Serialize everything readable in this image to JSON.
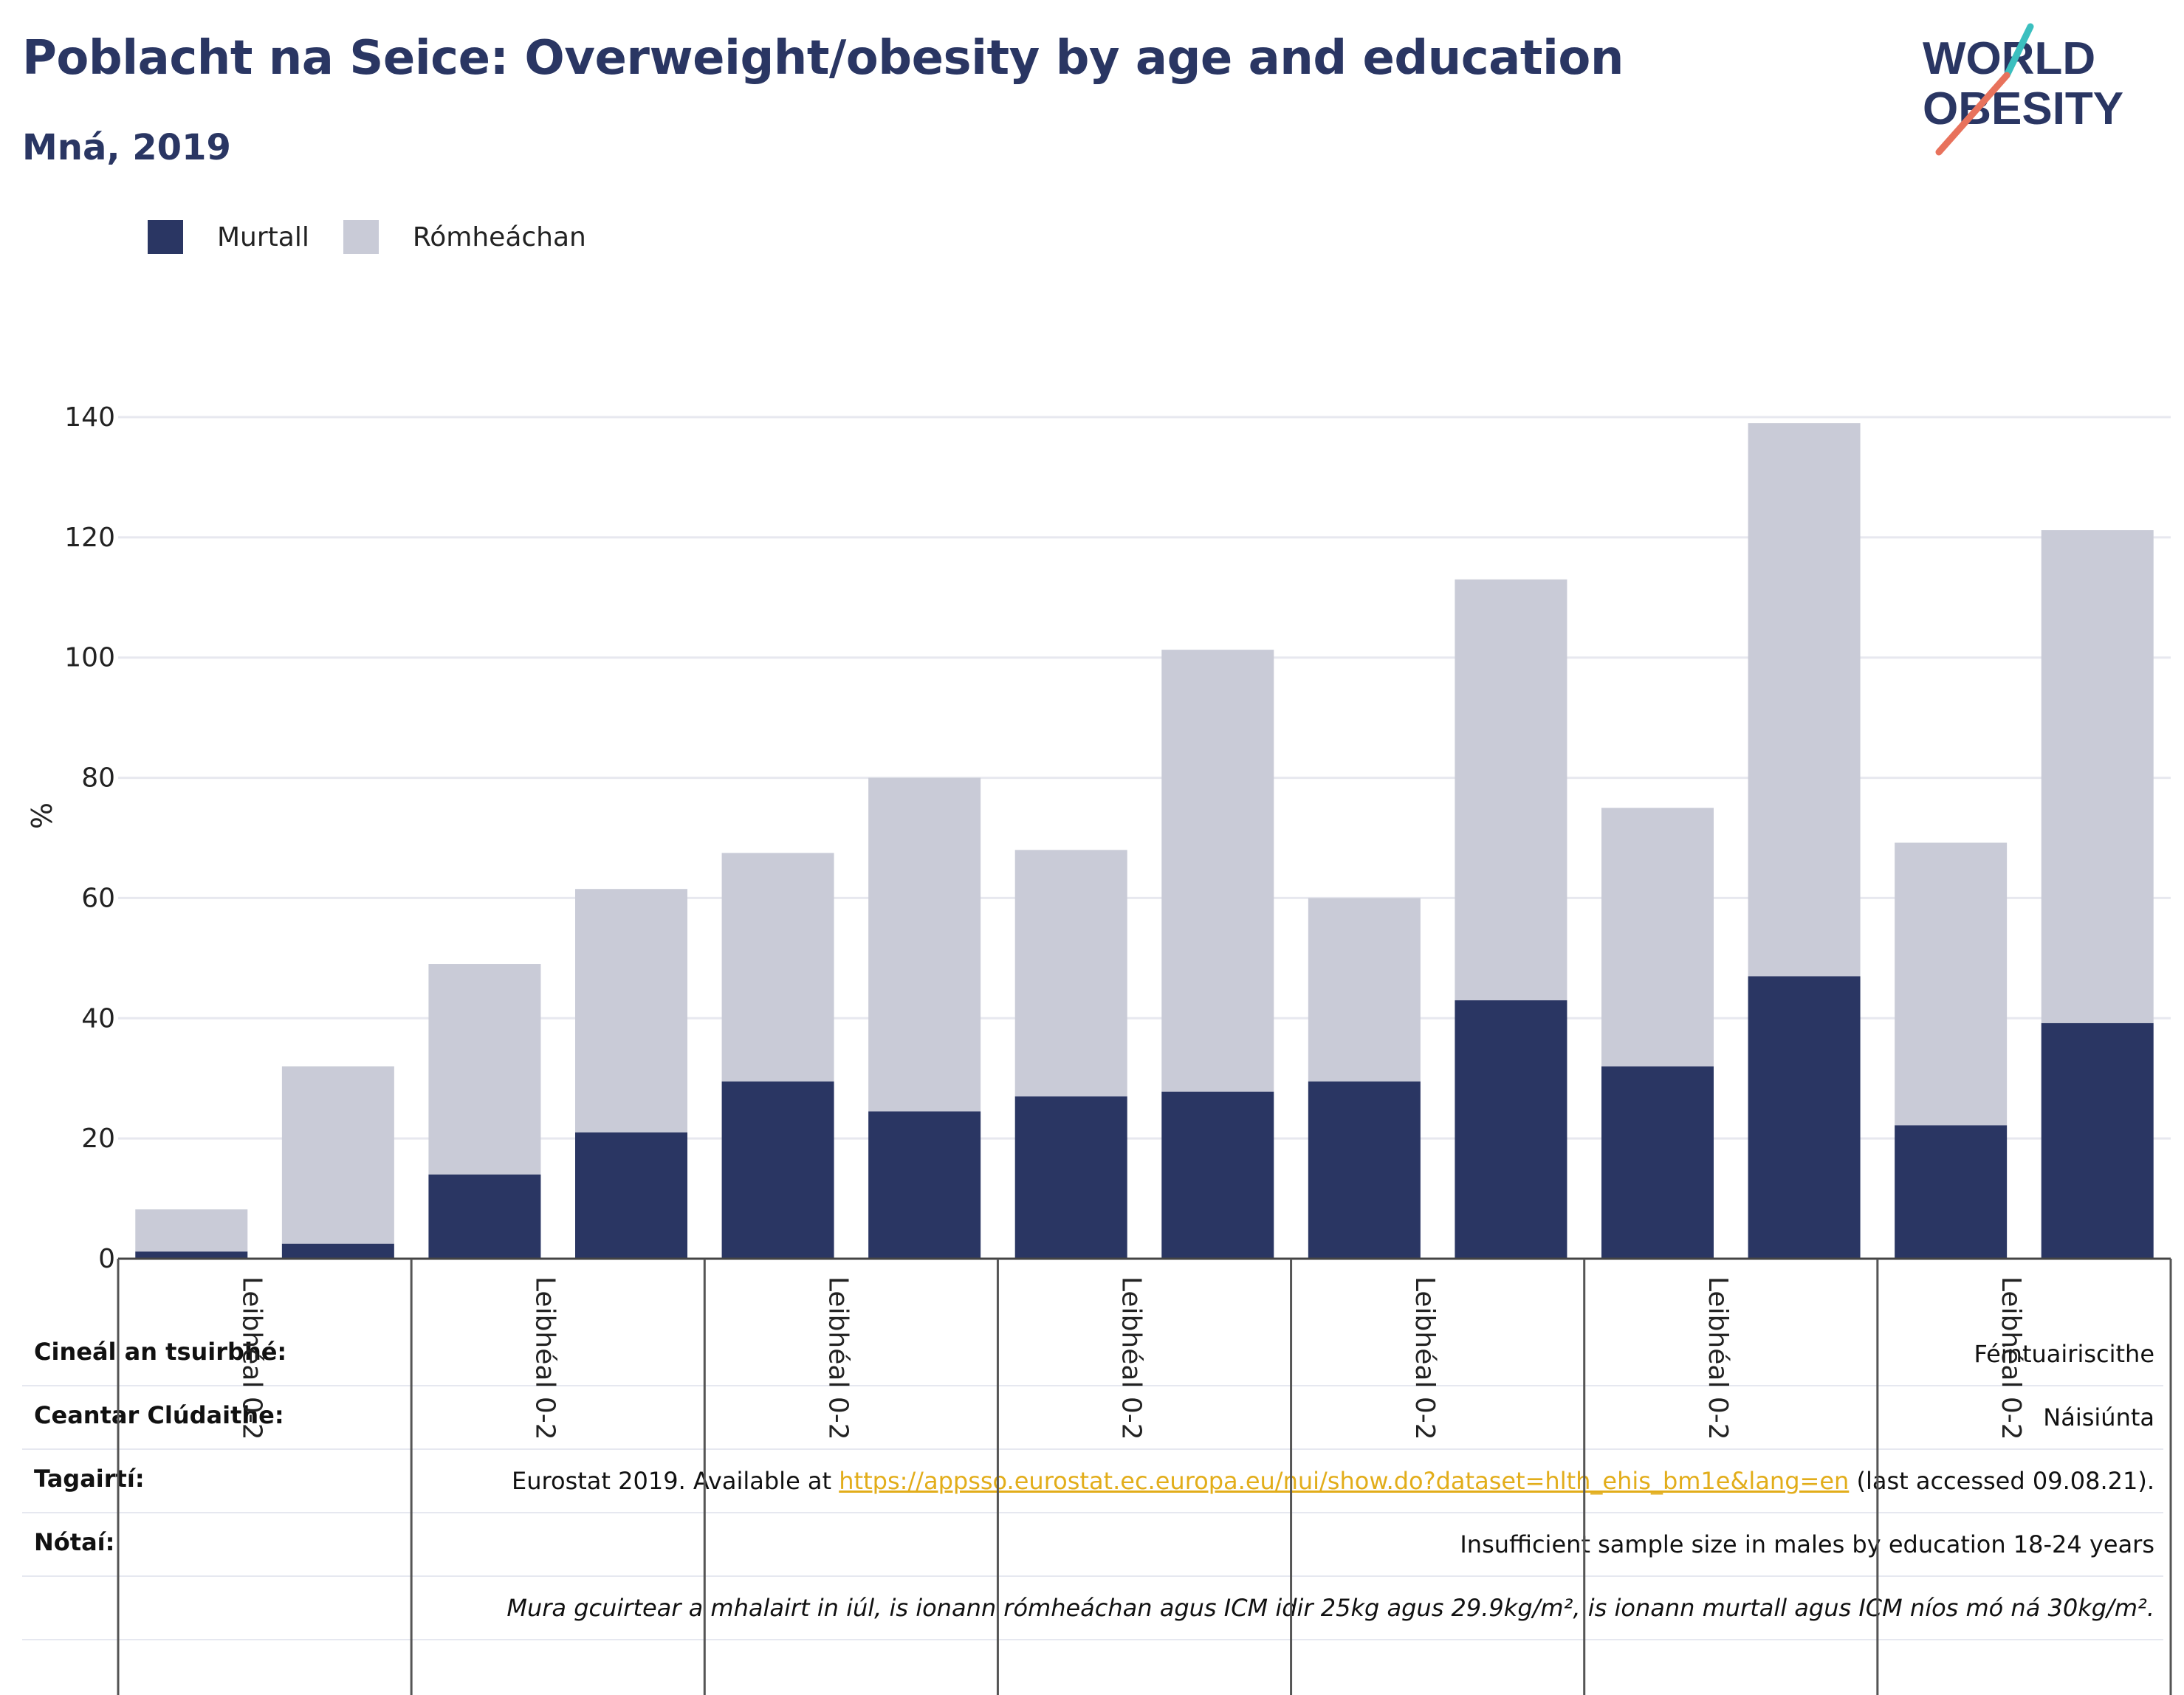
{
  "title": "Poblacht na Seice: Overweight/obesity by age and education",
  "subtitle": "Mná, 2019",
  "logo": {
    "line1": "WORLD",
    "line2": "OBESITY"
  },
  "colors": {
    "obese": "#2a3663",
    "overweight": "#c9cbd7",
    "title": "#2a3663",
    "link": "#e2ad1a"
  },
  "legend": {
    "obese": "Murtall",
    "overweight": "Rómheáchan"
  },
  "chart_data": {
    "type": "bar",
    "stacked": true,
    "ylabel": "%",
    "ylim": [
      0,
      140
    ],
    "yticks": [
      0,
      20,
      40,
      60,
      80,
      100,
      120,
      140
    ],
    "grid": true,
    "legend_position": "top-left",
    "group_label": "Leibhéal 0-2",
    "groups": 7,
    "bars_per_group": 2,
    "series": [
      {
        "name": "Murtall",
        "values": [
          1.2,
          2.5,
          14.0,
          21.0,
          29.5,
          24.5,
          27.0,
          27.8,
          29.5,
          43.0,
          32.0,
          47.0,
          22.2,
          39.2
        ]
      },
      {
        "name": "Rómheáchan",
        "values": [
          7.0,
          29.5,
          35.0,
          40.5,
          38.0,
          55.5,
          41.0,
          73.5,
          30.5,
          70.0,
          43.0,
          92.0,
          47.0,
          82.0
        ]
      }
    ]
  },
  "meta": [
    {
      "label": "Cineál an tsuirbhé:",
      "value": "Féintuairiscithe"
    },
    {
      "label": "Ceantar Clúdaithe:",
      "value": "Náisiúnta"
    },
    {
      "label": "Tagairtí:",
      "prefix": "Eurostat 2019. Available at ",
      "link": "https://appsso.eurostat.ec.europa.eu/nui/show.do?dataset=hlth_ehis_bm1e&lang=en",
      "suffix": " (last accessed 09.08.21)."
    },
    {
      "label": "Nótaí:",
      "value": "Insufficient sample size in males by education 18-24 years"
    },
    {
      "label": "",
      "value": "Mura gcuirtear a mhalairt in iúl, is ionann rómheáchan agus ICM idir 25kg agus 29.9kg/m², is ionann murtall agus ICM níos mó ná 30kg/m²."
    }
  ]
}
